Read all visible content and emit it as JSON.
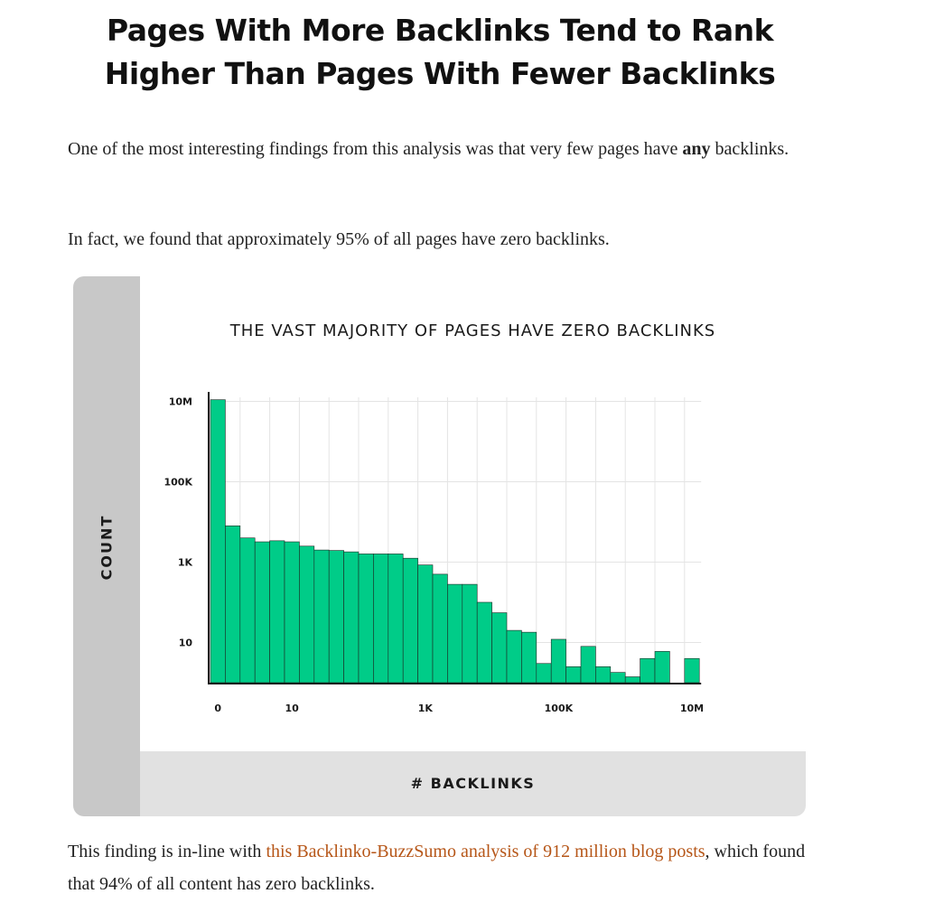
{
  "article": {
    "heading_line1": "Pages With More Backlinks Tend to Rank",
    "heading_line2": "Higher Than Pages With Fewer Backlinks",
    "p1_before": "One of the most interesting findings from this analysis was that very few pages have ",
    "p1_bold": "any",
    "p1_after": " backlinks.",
    "p2": "In fact, we found that approximately 95% of all pages have zero backlinks.",
    "p3_before": "This finding is in-line with ",
    "p3_link": "this Backlinko-BuzzSumo analysis of 912 million blog posts",
    "p3_after": ", which found that 94% of all content has zero backlinks.",
    "link_color": "#b65618"
  },
  "chart_data": {
    "type": "bar",
    "title": "THE VAST MAJORITY OF PAGES HAVE ZERO BACKLINKS",
    "xlabel": "# BACKLINKS",
    "ylabel": "COUNT",
    "y_scale": "log",
    "ylim": [
      1,
      10000000
    ],
    "y_ticks": [
      {
        "value": 10,
        "label": "10"
      },
      {
        "value": 1000,
        "label": "1K"
      },
      {
        "value": 100000,
        "label": "100K"
      },
      {
        "value": 10000000,
        "label": "10M"
      }
    ],
    "x_ticks": [
      {
        "bin": 0,
        "label": "0"
      },
      {
        "bin": 5,
        "label": "10"
      },
      {
        "bin": 14,
        "label": "1K"
      },
      {
        "bin": 23,
        "label": "100K"
      },
      {
        "bin": 32,
        "label": "10M"
      }
    ],
    "bar_color": "#00cc88",
    "grid": true,
    "values": [
      11000000,
      8000,
      4000,
      3200,
      3400,
      3200,
      2500,
      2000,
      1950,
      1800,
      1600,
      1600,
      1600,
      1250,
      850,
      500,
      280,
      280,
      100,
      55,
      20,
      18,
      3,
      12,
      2.5,
      8,
      2.5,
      1.8,
      1.4,
      4,
      6,
      0,
      4
    ]
  }
}
